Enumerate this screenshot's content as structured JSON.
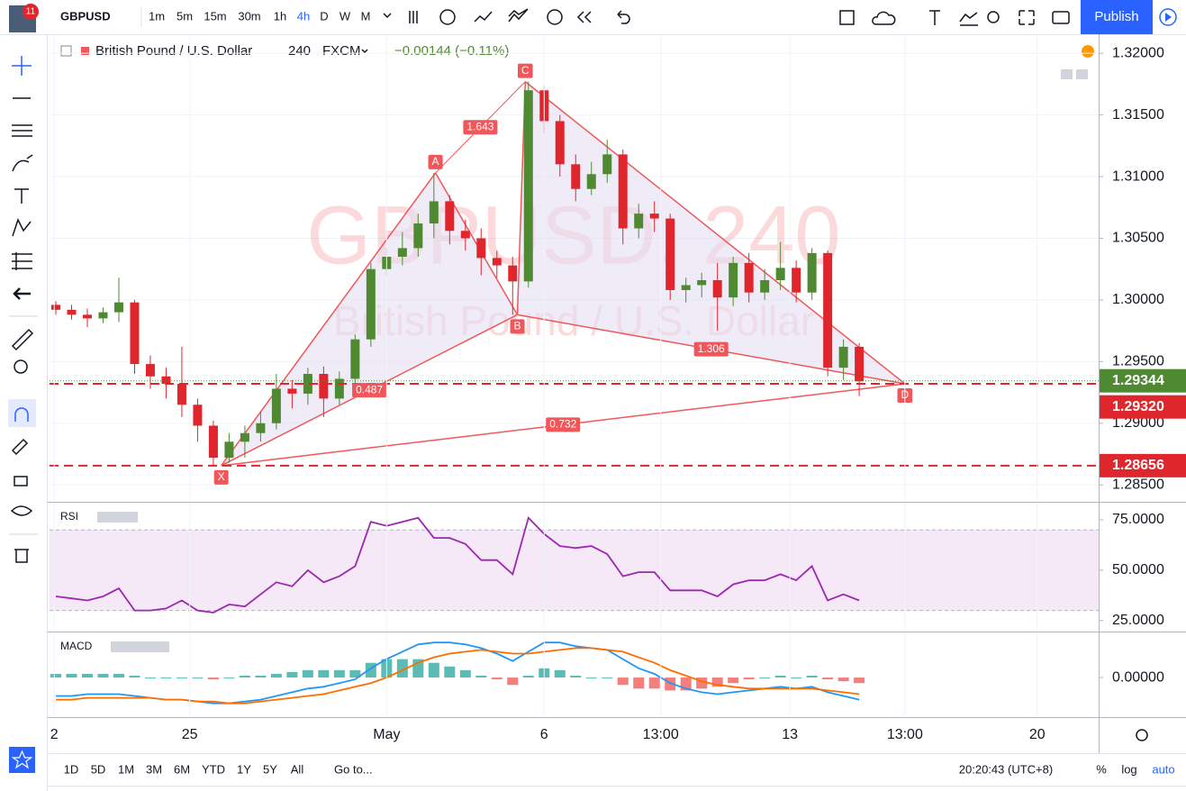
{
  "toolbar": {
    "badge": "11",
    "symbol": "GBPUSD",
    "timeframes": [
      "1m",
      "5m",
      "15m",
      "30m",
      "1h",
      "4h",
      "D",
      "W",
      "M"
    ],
    "selected_timeframe": 5,
    "publish": "Publish"
  },
  "legend": {
    "name": "British Pound / U.S. Dollar",
    "interval": "240",
    "source": "FXCM",
    "change": "−0.00144 (−0.11%)"
  },
  "chart_data": {
    "type": "candlestick",
    "watermark": "GBPUSD, 240",
    "up_color": "#4f8a33",
    "down_color": "#e0262d",
    "xlim": [
      -0.4,
      66.2
    ],
    "xticks": [
      {
        "value": -0.1,
        "label": "2"
      },
      {
        "value": 8.5,
        "label": "25"
      },
      {
        "value": 21,
        "label": "May"
      },
      {
        "value": 31,
        "label": "6"
      },
      {
        "value": 38.4,
        "label": "13:00"
      },
      {
        "value": 46.6,
        "label": "13"
      },
      {
        "value": 53.9,
        "label": "13:00"
      },
      {
        "value": 62.3,
        "label": "20"
      }
    ],
    "ylim": [
      1.2837,
      1.3214
    ],
    "yticks": [
      {
        "value": 1.32,
        "label": "1.32000"
      },
      {
        "value": 1.315,
        "label": "1.31500"
      },
      {
        "value": 1.31,
        "label": "1.31000"
      },
      {
        "value": 1.305,
        "label": "1.30500"
      },
      {
        "value": 1.3,
        "label": "1.30000"
      },
      {
        "value": 1.295,
        "label": "1.29500"
      },
      {
        "value": 1.29,
        "label": "1.29000"
      },
      {
        "value": 1.285,
        "label": "1.28500"
      }
    ],
    "grid": true,
    "open": [
      1.2996,
      1.2992,
      1.2988,
      1.2985,
      1.299,
      1.2998,
      1.2948,
      1.2938,
      1.2932,
      1.2915,
      1.2898,
      1.2872,
      1.2885,
      1.2892,
      1.29,
      1.2928,
      1.2924,
      1.294,
      1.292,
      1.2936,
      1.2968,
      1.3025,
      1.3035,
      1.3042,
      1.3062,
      1.308,
      1.3056,
      1.305,
      1.3034,
      1.3028,
      1.3015,
      1.317,
      1.3145,
      1.311,
      1.309,
      1.3102,
      1.3118,
      1.3058,
      1.307,
      1.3066,
      1.3008,
      1.3012,
      1.3016,
      1.3002,
      1.303,
      1.3006,
      1.3016,
      1.3026,
      1.3006,
      1.3038,
      1.2945,
      1.2962
    ],
    "high": [
      1.2999,
      1.2996,
      1.2993,
      1.2994,
      1.3018,
      1.3,
      1.2955,
      1.2945,
      1.2962,
      1.292,
      1.2902,
      1.2892,
      1.2898,
      1.291,
      1.294,
      1.2935,
      1.2945,
      1.2946,
      1.2942,
      1.2972,
      1.303,
      1.3042,
      1.3055,
      1.307,
      1.3103,
      1.3085,
      1.3065,
      1.3058,
      1.304,
      1.3035,
      1.3177,
      1.3174,
      1.315,
      1.3118,
      1.3112,
      1.313,
      1.3122,
      1.3078,
      1.308,
      1.307,
      1.3018,
      1.3022,
      1.303,
      1.3035,
      1.3038,
      1.3025,
      1.3047,
      1.3032,
      1.3042,
      1.304,
      1.2968,
      1.2965
    ],
    "low": [
      1.2988,
      1.2984,
      1.2978,
      1.2981,
      1.2982,
      1.294,
      1.2928,
      1.292,
      1.2905,
      1.2885,
      1.28656,
      1.2868,
      1.2872,
      1.2885,
      1.2895,
      1.2912,
      1.2915,
      1.2905,
      1.2915,
      1.293,
      1.2962,
      1.302,
      1.3028,
      1.3035,
      1.305,
      1.3045,
      1.304,
      1.302,
      1.3018,
      1.2988,
      1.301,
      1.3135,
      1.31,
      1.308,
      1.3085,
      1.3095,
      1.3045,
      1.305,
      1.3055,
      1.3,
      1.2998,
      1.3002,
      1.2975,
      1.2995,
      1.2998,
      1.3,
      1.3008,
      1.2998,
      1.3,
      1.2938,
      1.2935,
      1.2922
    ],
    "close": [
      1.2992,
      1.2988,
      1.2985,
      1.299,
      1.2998,
      1.2948,
      1.2938,
      1.2932,
      1.2915,
      1.2898,
      1.2872,
      1.2885,
      1.2892,
      1.29,
      1.2928,
      1.2924,
      1.294,
      1.292,
      1.2936,
      1.2968,
      1.3025,
      1.3035,
      1.3042,
      1.3062,
      1.308,
      1.3056,
      1.305,
      1.3034,
      1.3028,
      1.3015,
      1.317,
      1.3145,
      1.311,
      1.309,
      1.3102,
      1.3118,
      1.3058,
      1.307,
      1.3066,
      1.3008,
      1.3012,
      1.3016,
      1.3002,
      1.303,
      1.3006,
      1.3016,
      1.3026,
      1.3006,
      1.3038,
      1.2945,
      1.2962,
      1.2934
    ],
    "price_lines": [
      {
        "value": 1.29344,
        "color": "#4f8a33",
        "dashed": false
      },
      {
        "value": 1.2932,
        "label": "1.29320",
        "color": "#e0262d",
        "dashed": true
      },
      {
        "value": 1.28656,
        "color": "#e0262d",
        "dashed": true
      }
    ],
    "pattern": {
      "color": "#f0565a",
      "fill": "#e4def2",
      "points": [
        {
          "label": "X",
          "x": 10.5,
          "price": 1.28656
        },
        {
          "label": "A",
          "x": 24.1,
          "price": 1.3103
        },
        {
          "label": "B",
          "x": 29.3,
          "price": 1.2988
        },
        {
          "label": "C",
          "x": 29.8,
          "price": 1.3177
        },
        {
          "label": "D",
          "x": 53.9,
          "price": 1.2932
        }
      ],
      "ratios": [
        1.643,
        0.487,
        1.306,
        0.732
      ]
    },
    "rsi": {
      "name": "RSI",
      "color": "#9c27b0",
      "ylim": [
        20,
        83.5
      ],
      "yticks": [
        {
          "value": 75,
          "label": "75.0000"
        },
        {
          "value": 50,
          "label": "50.0000"
        },
        {
          "value": 25,
          "label": "25.0000"
        }
      ],
      "band": [
        30,
        70
      ],
      "values": [
        37,
        36,
        35,
        37,
        41,
        30,
        30,
        31,
        35,
        30,
        29,
        33,
        32,
        38,
        44,
        42,
        50,
        44,
        47,
        52,
        74,
        72,
        74,
        76,
        66,
        66,
        63,
        55,
        55,
        48,
        76,
        68,
        62,
        61,
        62,
        58,
        47,
        49,
        49,
        40,
        40,
        40,
        37,
        43,
        45,
        45,
        48,
        45,
        52,
        35,
        38,
        35
      ]
    },
    "macd": {
      "name": "MACD",
      "ylim": [
        -0.0021,
        0.0024
      ],
      "yticks": [
        {
          "value": 0,
          "label": "0.00000"
        }
      ],
      "macd_color": "#2196f3",
      "signal_color": "#ff6d00",
      "hist_up_color": "#26a69a",
      "hist_down_color": "#ef5350",
      "macd": [
        -0.001,
        -0.001,
        -0.0009,
        -0.0009,
        -0.0009,
        -0.001,
        -0.0011,
        -0.0012,
        -0.0012,
        -0.0013,
        -0.0014,
        -0.0014,
        -0.0013,
        -0.0012,
        -0.001,
        -0.0008,
        -0.0006,
        -0.0005,
        -0.0003,
        -0.0001,
        0.0005,
        0.001,
        0.0014,
        0.0018,
        0.0019,
        0.0019,
        0.0018,
        0.0016,
        0.0013,
        0.0009,
        0.0014,
        0.0019,
        0.0019,
        0.0017,
        0.0016,
        0.0015,
        0.001,
        0.0005,
        0.0002,
        -0.0003,
        -0.0006,
        -0.0008,
        -0.0009,
        -0.0008,
        -0.0007,
        -0.0006,
        -0.0005,
        -0.0006,
        -0.0005,
        -0.0008,
        -0.001,
        -0.0012
      ],
      "signal": [
        -0.0012,
        -0.0012,
        -0.0011,
        -0.0011,
        -0.0011,
        -0.0011,
        -0.0011,
        -0.0012,
        -0.0012,
        -0.0013,
        -0.0013,
        -0.0014,
        -0.0014,
        -0.0013,
        -0.0012,
        -0.0011,
        -0.001,
        -0.0009,
        -0.0007,
        -0.0005,
        -0.0003,
        0.0,
        0.0004,
        0.0008,
        0.0011,
        0.0013,
        0.0014,
        0.0015,
        0.0014,
        0.0013,
        0.0013,
        0.0014,
        0.0015,
        0.0016,
        0.0016,
        0.0015,
        0.0014,
        0.0011,
        0.0008,
        0.0004,
        0.0001,
        -0.0002,
        -0.0004,
        -0.0005,
        -0.0006,
        -0.0006,
        -0.0006,
        -0.0006,
        -0.0006,
        -0.0007,
        -0.0008,
        -0.0009
      ],
      "histogram": [
        0.0002,
        0.0002,
        0.0002,
        0.0002,
        0.0002,
        0.0001,
        0.0,
        0.0,
        0.0,
        0.0,
        -0.0001,
        0.0,
        0.0001,
        0.0001,
        0.0002,
        0.0003,
        0.0004,
        0.0004,
        0.0004,
        0.0004,
        0.0008,
        0.001,
        0.001,
        0.001,
        0.0008,
        0.0006,
        0.0004,
        0.0001,
        -0.0001,
        -0.0004,
        0.0001,
        0.0005,
        0.0004,
        0.0001,
        0.0,
        0.0,
        -0.0004,
        -0.0006,
        -0.0006,
        -0.0007,
        -0.0007,
        -0.0006,
        -0.0005,
        -0.0003,
        -0.0001,
        0.0,
        0.0001,
        0.0,
        0.0001,
        -0.0001,
        -0.0002,
        -0.0003
      ]
    }
  },
  "bottom_bar": {
    "ranges": [
      "1D",
      "5D",
      "1M",
      "3M",
      "6M",
      "YTD",
      "1Y",
      "5Y",
      "All"
    ],
    "goto": "Go to...",
    "clock": "20:20:43 (UTC+8)",
    "percent": "%",
    "log": "log",
    "auto": "auto"
  }
}
